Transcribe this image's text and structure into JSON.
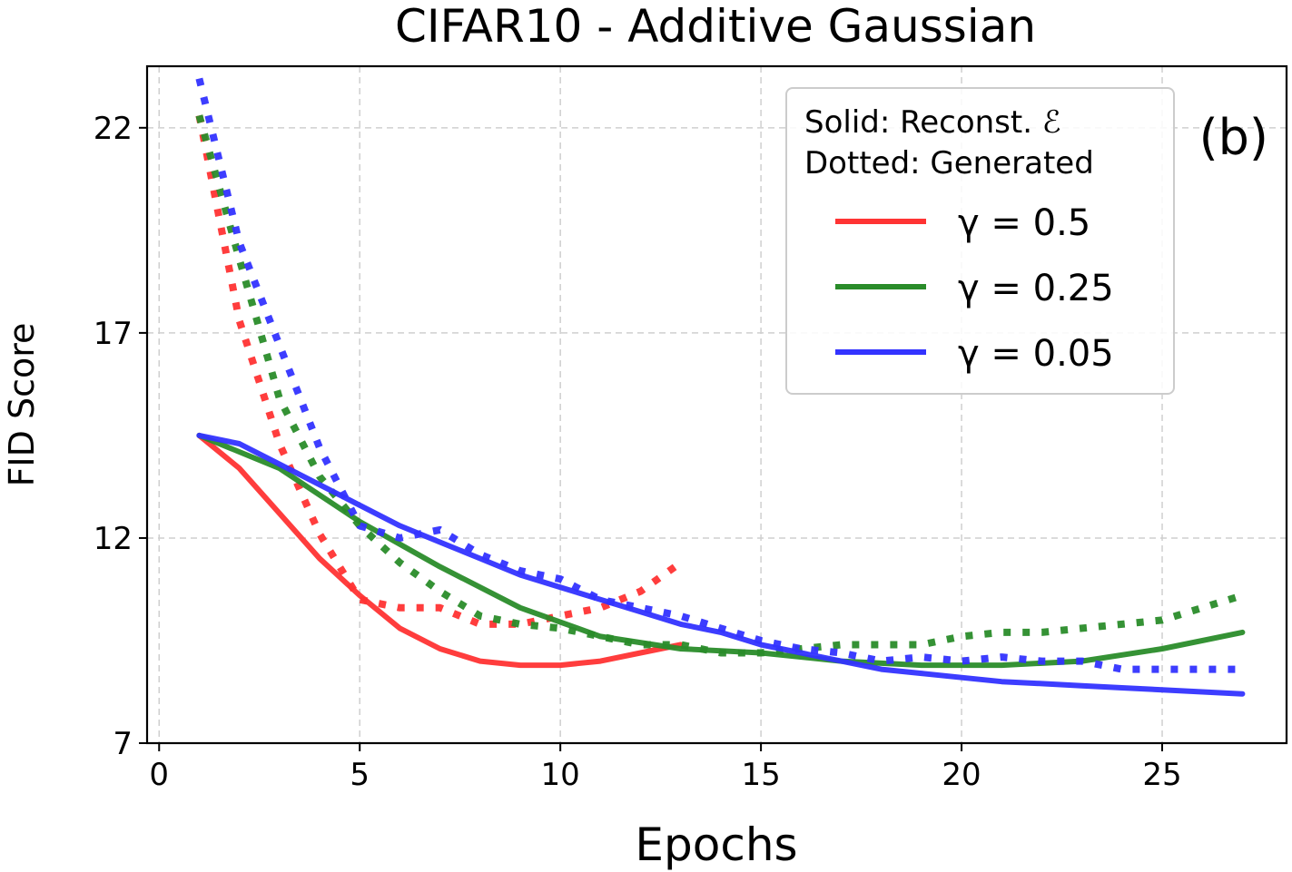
{
  "chart_data": {
    "type": "line",
    "title": "CIFAR10 - Additive Gaussian",
    "xlabel": "Epochs",
    "ylabel": "FID Score",
    "xlim": [
      -0.3,
      28.1
    ],
    "ylim": [
      7,
      23.5
    ],
    "xticks": [
      0,
      5,
      10,
      15,
      20,
      25
    ],
    "yticks": [
      7,
      12,
      17,
      22
    ],
    "grid": true,
    "panel_tag": "(b)",
    "legend": {
      "position": "top-right",
      "note_line1": "Solid: Reconst. ℰ",
      "note_line2": "Dotted: Generated",
      "entries": [
        {
          "name": "γ = 0.5",
          "color": "#ff3333"
        },
        {
          "name": "γ = 0.25",
          "color": "#2a8c2a"
        },
        {
          "name": "γ = 0.05",
          "color": "#3333ff"
        }
      ]
    },
    "series": [
      {
        "name": "γ = 0.5 reconstruction",
        "color": "#ff3333",
        "style": "solid",
        "x": [
          1,
          2,
          3,
          4,
          5,
          6,
          7,
          8,
          9,
          10,
          11,
          12,
          13
        ],
        "y": [
          14.5,
          13.7,
          12.6,
          11.5,
          10.6,
          9.8,
          9.3,
          9.0,
          8.9,
          8.9,
          9.0,
          9.2,
          9.4
        ]
      },
      {
        "name": "γ = 0.5 generated",
        "color": "#ff3333",
        "style": "dotted",
        "x": [
          1,
          2,
          3,
          4,
          5,
          6,
          7,
          8,
          9,
          10,
          11,
          12,
          13
        ],
        "y": [
          22.3,
          17.3,
          14.3,
          12.1,
          10.5,
          10.3,
          10.3,
          9.9,
          9.9,
          10.1,
          10.3,
          10.7,
          11.4
        ]
      },
      {
        "name": "γ = 0.25 reconstruction",
        "color": "#2a8c2a",
        "style": "solid",
        "x": [
          1,
          3,
          5,
          7,
          9,
          11,
          13,
          15,
          17,
          19,
          21,
          23,
          25,
          27
        ],
        "y": [
          14.5,
          13.7,
          12.4,
          11.3,
          10.3,
          9.6,
          9.3,
          9.2,
          9.0,
          8.9,
          8.9,
          9.0,
          9.3,
          9.7
        ]
      },
      {
        "name": "γ = 0.25 generated",
        "color": "#2a8c2a",
        "style": "dotted",
        "x": [
          1,
          2,
          3,
          4,
          5,
          6,
          7,
          8,
          9,
          10,
          11,
          12,
          13,
          14,
          15,
          16,
          17,
          18,
          19,
          20,
          21,
          22,
          23,
          24,
          25,
          26,
          27
        ],
        "y": [
          22.3,
          18.8,
          15.4,
          13.5,
          12.3,
          11.4,
          10.7,
          10.1,
          9.9,
          9.8,
          9.6,
          9.4,
          9.4,
          9.2,
          9.2,
          9.3,
          9.4,
          9.4,
          9.4,
          9.6,
          9.7,
          9.7,
          9.8,
          9.9,
          10.0,
          10.3,
          10.6
        ]
      },
      {
        "name": "γ = 0.05 reconstruction",
        "color": "#3333ff",
        "style": "solid",
        "x": [
          1,
          2,
          3,
          4,
          5,
          6,
          7,
          8,
          9,
          10,
          11,
          12,
          13,
          14,
          15,
          16,
          17,
          18,
          19,
          20,
          21,
          22,
          23,
          24,
          25,
          26,
          27
        ],
        "y": [
          14.5,
          14.3,
          13.8,
          13.3,
          12.8,
          12.3,
          11.9,
          11.5,
          11.1,
          10.8,
          10.5,
          10.2,
          9.9,
          9.7,
          9.4,
          9.2,
          9.0,
          8.8,
          8.7,
          8.6,
          8.5,
          8.45,
          8.4,
          8.35,
          8.3,
          8.25,
          8.2
        ]
      },
      {
        "name": "γ = 0.05 generated",
        "color": "#3333ff",
        "style": "dotted",
        "x": [
          1,
          2,
          3,
          4,
          5,
          6,
          7,
          8,
          9,
          10,
          11,
          12,
          13,
          14,
          15,
          16,
          17,
          18,
          19,
          20,
          21,
          22,
          23,
          24,
          25,
          26,
          27
        ],
        "y": [
          23.2,
          19.2,
          16.7,
          14.2,
          12.3,
          12.0,
          12.2,
          11.6,
          11.2,
          11.0,
          10.5,
          10.3,
          10.1,
          9.8,
          9.5,
          9.3,
          9.2,
          9.0,
          9.1,
          9.0,
          9.1,
          9.0,
          9.0,
          8.8,
          8.8,
          8.8,
          8.8
        ]
      }
    ]
  }
}
